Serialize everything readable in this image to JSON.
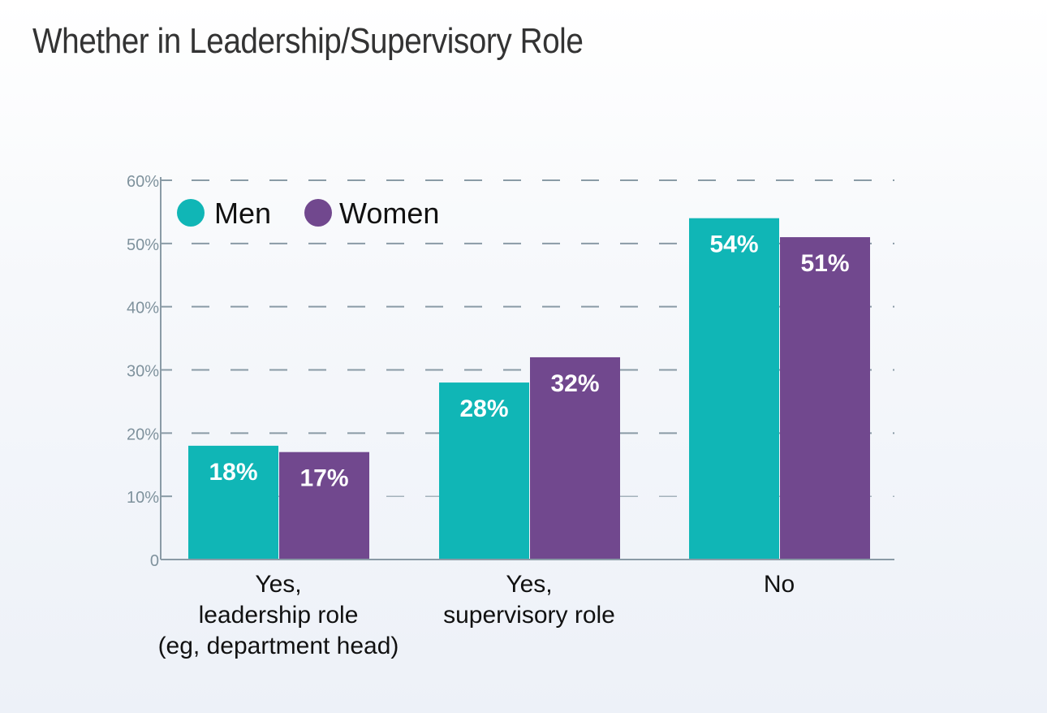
{
  "chart_data": {
    "type": "bar",
    "title": "Whether in Leadership/Supervisory Role",
    "categories": [
      [
        "Yes,",
        "leadership role",
        "(eg, department head)"
      ],
      [
        "Yes,",
        "supervisory role"
      ],
      [
        "No"
      ]
    ],
    "series": [
      {
        "name": "Men",
        "color": "#10b6b6",
        "values": [
          18,
          28,
          54
        ],
        "labels": [
          "18%",
          "28%",
          "54%"
        ]
      },
      {
        "name": "Women",
        "color": "#71488e",
        "values": [
          17,
          32,
          51
        ],
        "labels": [
          "17%",
          "32%",
          "51%"
        ]
      }
    ],
    "ylim": [
      0,
      60
    ],
    "yticks": [
      0,
      10,
      20,
      30,
      40,
      50,
      60
    ],
    "ytick_labels": [
      "0",
      "10%",
      "20%",
      "30%",
      "40%",
      "50%",
      "60%"
    ],
    "grid": true,
    "legend": "top-left",
    "xlabel": "",
    "ylabel": ""
  }
}
